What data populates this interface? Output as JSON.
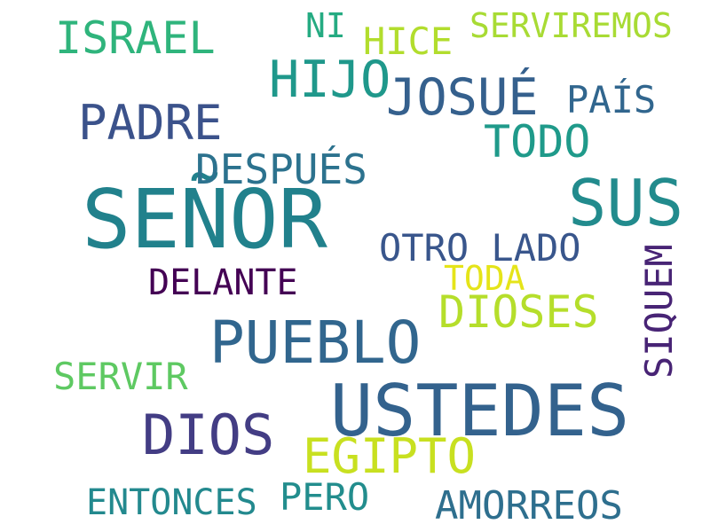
{
  "words": {
    "senor": "SEÑOR",
    "ustedes": "USTEDES",
    "pueblo": "PUEBLO",
    "sus": "SUS",
    "dios": "DIOS",
    "hijo": "HIJO",
    "josue": "JOSUÉ",
    "padre": "PADRE",
    "egipto": "EGIPTO",
    "israel": "ISRAEL",
    "todo": "TODO",
    "dioses": "DIOSES",
    "despues": "DESPUÉS",
    "otro_lado": "OTRO LADO",
    "amorreos": "AMORREOS",
    "servir": "SERVIR",
    "entonces": "ENTONCES",
    "pero": "PERO",
    "hice": "HICE",
    "pais": "PAÍS",
    "delante": "DELANTE",
    "serviremos": "SERVIREMOS",
    "toda": "TODA",
    "ni": "NI",
    "siquem": "SIQUEM"
  },
  "colors": {
    "background": "#ffffff",
    "palette": "viridis"
  }
}
